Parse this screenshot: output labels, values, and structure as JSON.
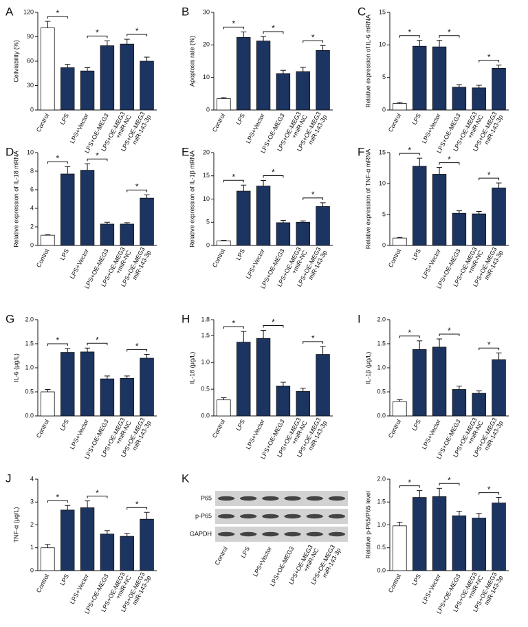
{
  "chart_data": [
    {
      "type": "bar",
      "label": "A",
      "ylabel": "Cellviability (%)",
      "categories": [
        "Control",
        "LPS",
        "LPS+Vector",
        "LPS+OE-MEG3",
        "LPS+OE-MEG3\n+miR-NC",
        "LPS+OE-MEG3\nmiR-143-3p"
      ],
      "values": [
        101,
        52,
        48,
        79,
        81,
        60
      ],
      "errors": [
        8,
        4,
        4,
        6,
        6,
        5
      ],
      "bar_colors": [
        "#ffffff",
        "#1c3461",
        "#1c3461",
        "#1c3461",
        "#1c3461",
        "#1c3461"
      ],
      "ylim": [
        0,
        120
      ],
      "yticks": [
        0,
        30,
        60,
        90,
        120
      ],
      "annotations": [
        {
          "text": "*",
          "from": 0,
          "to": 1
        },
        {
          "text": "*",
          "from": 2,
          "to": 3
        },
        {
          "text": "*",
          "from": 4,
          "to": 5
        }
      ]
    },
    {
      "type": "bar",
      "label": "B",
      "ylabel": "Apoptosis rate (%)",
      "categories": [
        "Control",
        "LPS",
        "LPS+Vector",
        "LPS+OE-MEG3",
        "LPS+OE-MEG3\n+miR-NC",
        "LPS+OE-MEG3\nmiR-143-3p"
      ],
      "values": [
        3.5,
        22.3,
        21.2,
        11.2,
        11.8,
        18.3
      ],
      "errors": [
        0.3,
        1.7,
        1.4,
        1,
        1.3,
        1.5
      ],
      "bar_colors": [
        "#ffffff",
        "#1c3461",
        "#1c3461",
        "#1c3461",
        "#1c3461",
        "#1c3461"
      ],
      "ylim": [
        0,
        30
      ],
      "yticks": [
        0,
        10,
        20,
        30
      ],
      "annotations": [
        {
          "text": "*",
          "from": 0,
          "to": 1
        },
        {
          "text": "*",
          "from": 2,
          "to": 3
        },
        {
          "text": "*",
          "from": 4,
          "to": 5
        }
      ]
    },
    {
      "type": "bar",
      "label": "C",
      "ylabel": "Relative expression of IL-6 mRNA",
      "categories": [
        "Control",
        "LPS",
        "LPS+Vector",
        "LPS+OE-MEG3",
        "LPS+OE-MEG3\n+miR-NC",
        "LPS+OE-MEG3\nmiR-143-3p"
      ],
      "values": [
        1.0,
        9.8,
        9.7,
        3.5,
        3.4,
        6.4
      ],
      "errors": [
        0.15,
        0.9,
        1,
        0.4,
        0.4,
        0.5
      ],
      "bar_colors": [
        "#ffffff",
        "#1c3461",
        "#1c3461",
        "#1c3461",
        "#1c3461",
        "#1c3461"
      ],
      "ylim": [
        0,
        15
      ],
      "yticks": [
        0,
        5,
        10,
        15
      ],
      "annotations": [
        {
          "text": "*",
          "from": 0,
          "to": 1
        },
        {
          "text": "*",
          "from": 2,
          "to": 3
        },
        {
          "text": "*",
          "from": 4,
          "to": 5
        }
      ]
    },
    {
      "type": "bar",
      "label": "D",
      "ylabel": "Relative expression of IL-18 mRNA",
      "categories": [
        "Control",
        "LPS",
        "LPS+Vector",
        "LPS+OE-MEG3",
        "LPS+OE-MEG3\n+miR-NC",
        "LPS+OE-MEG3\nmiR-143-3p"
      ],
      "values": [
        1.1,
        7.7,
        8.1,
        2.3,
        2.3,
        5.1
      ],
      "errors": [
        0.05,
        0.8,
        0.7,
        0.2,
        0.15,
        0.35
      ],
      "bar_colors": [
        "#ffffff",
        "#1c3461",
        "#1c3461",
        "#1c3461",
        "#1c3461",
        "#1c3461"
      ],
      "ylim": [
        0,
        10
      ],
      "yticks": [
        0,
        2,
        4,
        6,
        8,
        10
      ],
      "annotations": [
        {
          "text": "*",
          "from": 0,
          "to": 1
        },
        {
          "text": "*",
          "from": 2,
          "to": 3
        },
        {
          "text": "*",
          "from": 4,
          "to": 5
        }
      ]
    },
    {
      "type": "bar",
      "label": "E",
      "ylabel": "Relative expression of IL-1β mRNA",
      "categories": [
        "Control",
        "LPS",
        "LPS+Vector",
        "LPS+OE-MEG3",
        "LPS+OE-MEG3\n+miR-NC",
        "LPS+OE-MEG3\nmiR-143-3p"
      ],
      "values": [
        1.0,
        11.7,
        12.8,
        4.9,
        5.0,
        8.4
      ],
      "errors": [
        0.1,
        1.3,
        1.2,
        0.5,
        0.3,
        0.8
      ],
      "bar_colors": [
        "#ffffff",
        "#1c3461",
        "#1c3461",
        "#1c3461",
        "#1c3461",
        "#1c3461"
      ],
      "ylim": [
        0,
        20
      ],
      "yticks": [
        0,
        5,
        10,
        15,
        20
      ],
      "annotations": [
        {
          "text": "*",
          "from": 0,
          "to": 1
        },
        {
          "text": "*",
          "from": 2,
          "to": 3
        },
        {
          "text": "*",
          "from": 4,
          "to": 5
        }
      ]
    },
    {
      "type": "bar",
      "label": "F",
      "ylabel": "Relative expression of TNF-α mRNA",
      "categories": [
        "Control",
        "LPS",
        "LPS+Vector",
        "LPS+OE-MEG3",
        "LPS+OE-MEG3\n+miR-NC",
        "LPS+OE-MEG3\nmiR-143-3p"
      ],
      "values": [
        1.2,
        12.8,
        11.5,
        5.2,
        5.1,
        9.3
      ],
      "errors": [
        0.1,
        1.3,
        1.1,
        0.4,
        0.4,
        0.8
      ],
      "bar_colors": [
        "#ffffff",
        "#1c3461",
        "#1c3461",
        "#1c3461",
        "#1c3461",
        "#1c3461"
      ],
      "ylim": [
        0,
        15
      ],
      "yticks": [
        0,
        5,
        10,
        15
      ],
      "annotations": [
        {
          "text": "*",
          "from": 0,
          "to": 1
        },
        {
          "text": "*",
          "from": 2,
          "to": 3
        },
        {
          "text": "*",
          "from": 4,
          "to": 5
        }
      ]
    },
    {
      "type": "bar",
      "label": "G",
      "ylabel": "IL-6 (μg/L)",
      "categories": [
        "Control",
        "LPS",
        "LPS+Vector",
        "LPS+OE-MEG3",
        "LPS+OE-MEG3\n+miR-NC",
        "LPS+OE-MEG3\nmiR-143-3p"
      ],
      "values": [
        0.5,
        1.32,
        1.33,
        0.77,
        0.78,
        1.2
      ],
      "errors": [
        0.05,
        0.08,
        0.08,
        0.06,
        0.05,
        0.08
      ],
      "bar_colors": [
        "#ffffff",
        "#1c3461",
        "#1c3461",
        "#1c3461",
        "#1c3461",
        "#1c3461"
      ],
      "ylim": [
        0,
        2
      ],
      "yticks": [
        {
          "value": 0,
          "label": "0.0"
        },
        0.5,
        {
          "value": 1,
          "label": "1.0"
        },
        1.5,
        {
          "value": 2,
          "label": "2.0"
        }
      ],
      "annotations": [
        {
          "text": "*",
          "from": 0,
          "to": 1
        },
        {
          "text": "*",
          "from": 2,
          "to": 3
        },
        {
          "text": "*",
          "from": 4,
          "to": 5
        }
      ]
    },
    {
      "type": "bar",
      "label": "H",
      "ylabel": "IL-18 (μg/L)",
      "categories": [
        "Control",
        "LPS",
        "LPS+Vector",
        "LPS+OE-MEG3",
        "LPS+OE-MEG3\n+miR-NC",
        "LPS+OE-MEG3\nmiR-143-3p"
      ],
      "values": [
        0.3,
        1.38,
        1.45,
        0.56,
        0.46,
        1.15
      ],
      "errors": [
        0.04,
        0.2,
        0.15,
        0.07,
        0.06,
        0.15
      ],
      "bar_colors": [
        "#ffffff",
        "#1c3461",
        "#1c3461",
        "#1c3461",
        "#1c3461",
        "#1c3461"
      ],
      "ylim": [
        0,
        1.8
      ],
      "yticks": [
        {
          "value": 0,
          "label": "0.0"
        },
        0.5,
        {
          "value": 1,
          "label": "1.0"
        },
        1.5,
        1.8
      ],
      "annotations": [
        {
          "text": "*",
          "from": 0,
          "to": 1
        },
        {
          "text": "*",
          "from": 2,
          "to": 3
        },
        {
          "text": "*",
          "from": 4,
          "to": 5
        }
      ]
    },
    {
      "type": "bar",
      "label": "I",
      "ylabel": "IL-1β (μg/L)",
      "categories": [
        "Control",
        "LPS",
        "LPS+Vector",
        "LPS+OE-MEG3",
        "LPS+OE-MEG3\n+miR-NC",
        "LPS+OE-MEG3\nmiR-143-3p"
      ],
      "values": [
        0.3,
        1.38,
        1.43,
        0.55,
        0.47,
        1.17
      ],
      "errors": [
        0.04,
        0.18,
        0.17,
        0.07,
        0.05,
        0.14
      ],
      "bar_colors": [
        "#ffffff",
        "#1c3461",
        "#1c3461",
        "#1c3461",
        "#1c3461",
        "#1c3461"
      ],
      "ylim": [
        0,
        2
      ],
      "yticks": [
        {
          "value": 0,
          "label": "0.0"
        },
        0.5,
        {
          "value": 1,
          "label": "1.0"
        },
        1.5,
        {
          "value": 2,
          "label": "2.0"
        }
      ],
      "annotations": [
        {
          "text": "*",
          "from": 0,
          "to": 1
        },
        {
          "text": "*",
          "from": 2,
          "to": 3
        },
        {
          "text": "*",
          "from": 4,
          "to": 5
        }
      ]
    },
    {
      "type": "bar",
      "label": "J",
      "ylabel": "TNF-α (μg/L)",
      "categories": [
        "Control",
        "LPS",
        "LPS+Vector",
        "LPS+OE-MEG3",
        "LPS+OE-MEG3\n+miR-NC",
        "LPS+OE-MEG3\nmiR-143-3p"
      ],
      "values": [
        1.0,
        2.65,
        2.75,
        1.6,
        1.5,
        2.25
      ],
      "errors": [
        0.15,
        0.2,
        0.3,
        0.15,
        0.12,
        0.3
      ],
      "bar_colors": [
        "#ffffff",
        "#1c3461",
        "#1c3461",
        "#1c3461",
        "#1c3461",
        "#1c3461"
      ],
      "ylim": [
        0,
        4
      ],
      "yticks": [
        0,
        1,
        2,
        3,
        4
      ],
      "annotations": [
        {
          "text": "*",
          "from": 0,
          "to": 1
        },
        {
          "text": "*",
          "from": 2,
          "to": 3
        },
        {
          "text": "*",
          "from": 4,
          "to": 5
        }
      ]
    },
    {
      "type": "blot",
      "label": "K",
      "rows": [
        "P65",
        "p-P65",
        "GAPDH"
      ],
      "categories": [
        "Control",
        "LPS",
        "LPS+Vector",
        "LPS+OE-MEG3",
        "LPS+OE-MEG3\n+miR-NC",
        "LPS+OE-MEG3\nmiR-143-3p"
      ]
    },
    {
      "type": "bar",
      "ylabel": "Relative p-P65/P65 level",
      "categories": [
        "Control",
        "LPS",
        "LPS+Vector",
        "LPS+OE-MEG3",
        "LPS+OE-MEG3\n+miR-NC",
        "LPS+OE-MEG3\nmiR-143-3p"
      ],
      "values": [
        0.98,
        1.6,
        1.62,
        1.2,
        1.15,
        1.48
      ],
      "errors": [
        0.08,
        0.15,
        0.18,
        0.1,
        0.1,
        0.12
      ],
      "bar_colors": [
        "#ffffff",
        "#1c3461",
        "#1c3461",
        "#1c3461",
        "#1c3461",
        "#1c3461"
      ],
      "ylim": [
        0,
        2
      ],
      "yticks": [
        {
          "value": 0,
          "label": "0.0"
        },
        0.5,
        {
          "value": 1,
          "label": "1.0"
        },
        1.5,
        {
          "value": 2,
          "label": "2.0"
        }
      ],
      "annotations": [
        {
          "text": "*",
          "from": 0,
          "to": 1
        },
        {
          "text": "*",
          "from": 2,
          "to": 3
        },
        {
          "text": "*",
          "from": 4,
          "to": 5
        }
      ]
    }
  ]
}
